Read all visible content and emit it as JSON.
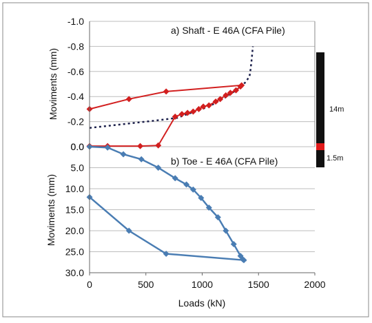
{
  "chart_data": [
    {
      "type": "line",
      "title": "a) Shaft - E 46A  (CFA  Pile)",
      "xlabel": "",
      "ylabel": "Moviments (mm)",
      "xlim": [
        0,
        2000
      ],
      "ylim": [
        0.0,
        -1.0
      ],
      "y_reversed": true,
      "yticks": [
        "-1.0",
        "-0.8",
        "-0.6",
        "-0.4",
        "-0.2",
        "0.0"
      ],
      "grid": "horizontal",
      "colors": {
        "measured": "#d21f1f",
        "model": "#1b1f4a"
      },
      "series": [
        {
          "style": "solid-diamond",
          "x": [
            0,
            160,
            450,
            610,
            760,
            820,
            870,
            920,
            970,
            1010,
            1060,
            1120,
            1160,
            1210,
            1250,
            1300,
            1340,
            1350,
            680,
            350,
            0
          ],
          "y": [
            -0.005,
            -0.005,
            -0.005,
            -0.01,
            -0.24,
            -0.26,
            -0.27,
            -0.28,
            -0.3,
            -0.32,
            -0.33,
            -0.36,
            -0.38,
            -0.41,
            -0.43,
            -0.45,
            -0.48,
            -0.49,
            -0.44,
            -0.38,
            -0.3
          ]
        },
        {
          "style": "dotted",
          "x": [
            0,
            200,
            400,
            600,
            780,
            900,
            1000,
            1100,
            1200,
            1300,
            1380,
            1420,
            1430,
            1440,
            1450
          ],
          "y": [
            -0.15,
            -0.17,
            -0.19,
            -0.21,
            -0.23,
            -0.27,
            -0.3,
            -0.34,
            -0.39,
            -0.45,
            -0.51,
            -0.56,
            -0.62,
            -0.7,
            -0.8
          ]
        }
      ]
    },
    {
      "type": "line",
      "title": "b) Toe - E 46A (CFA Pile)",
      "xlabel": "Loads (kN)",
      "ylabel": "Moviments (mm)",
      "xlim": [
        0,
        2000
      ],
      "ylim": [
        0.0,
        30.0
      ],
      "xticks": [
        "0",
        "500",
        "1000",
        "1500",
        "2000"
      ],
      "yticks": [
        "0.0",
        "5.0",
        "10.0",
        "15.0",
        "20.0",
        "25.0",
        "30.0"
      ],
      "grid": "horizontal",
      "colors": {
        "toe": "#4a7db3"
      },
      "series": [
        {
          "style": "solid-diamond",
          "x": [
            0,
            160,
            300,
            460,
            610,
            760,
            860,
            920,
            990,
            1060,
            1140,
            1210,
            1280,
            1340,
            1360,
            1370,
            680,
            350,
            0
          ],
          "y": [
            0,
            0.2,
            1.8,
            3.0,
            5.0,
            7.5,
            9.0,
            10.2,
            12.2,
            14.5,
            16.8,
            20.0,
            23.2,
            26.0,
            26.8,
            27.0,
            25.5,
            20.0,
            12.0
          ]
        }
      ]
    }
  ],
  "pile_bar": {
    "shaft_label": "14m",
    "toe_label": "1.5m",
    "colors": {
      "shaft": "#111111",
      "toe": "#e11a1a"
    }
  }
}
